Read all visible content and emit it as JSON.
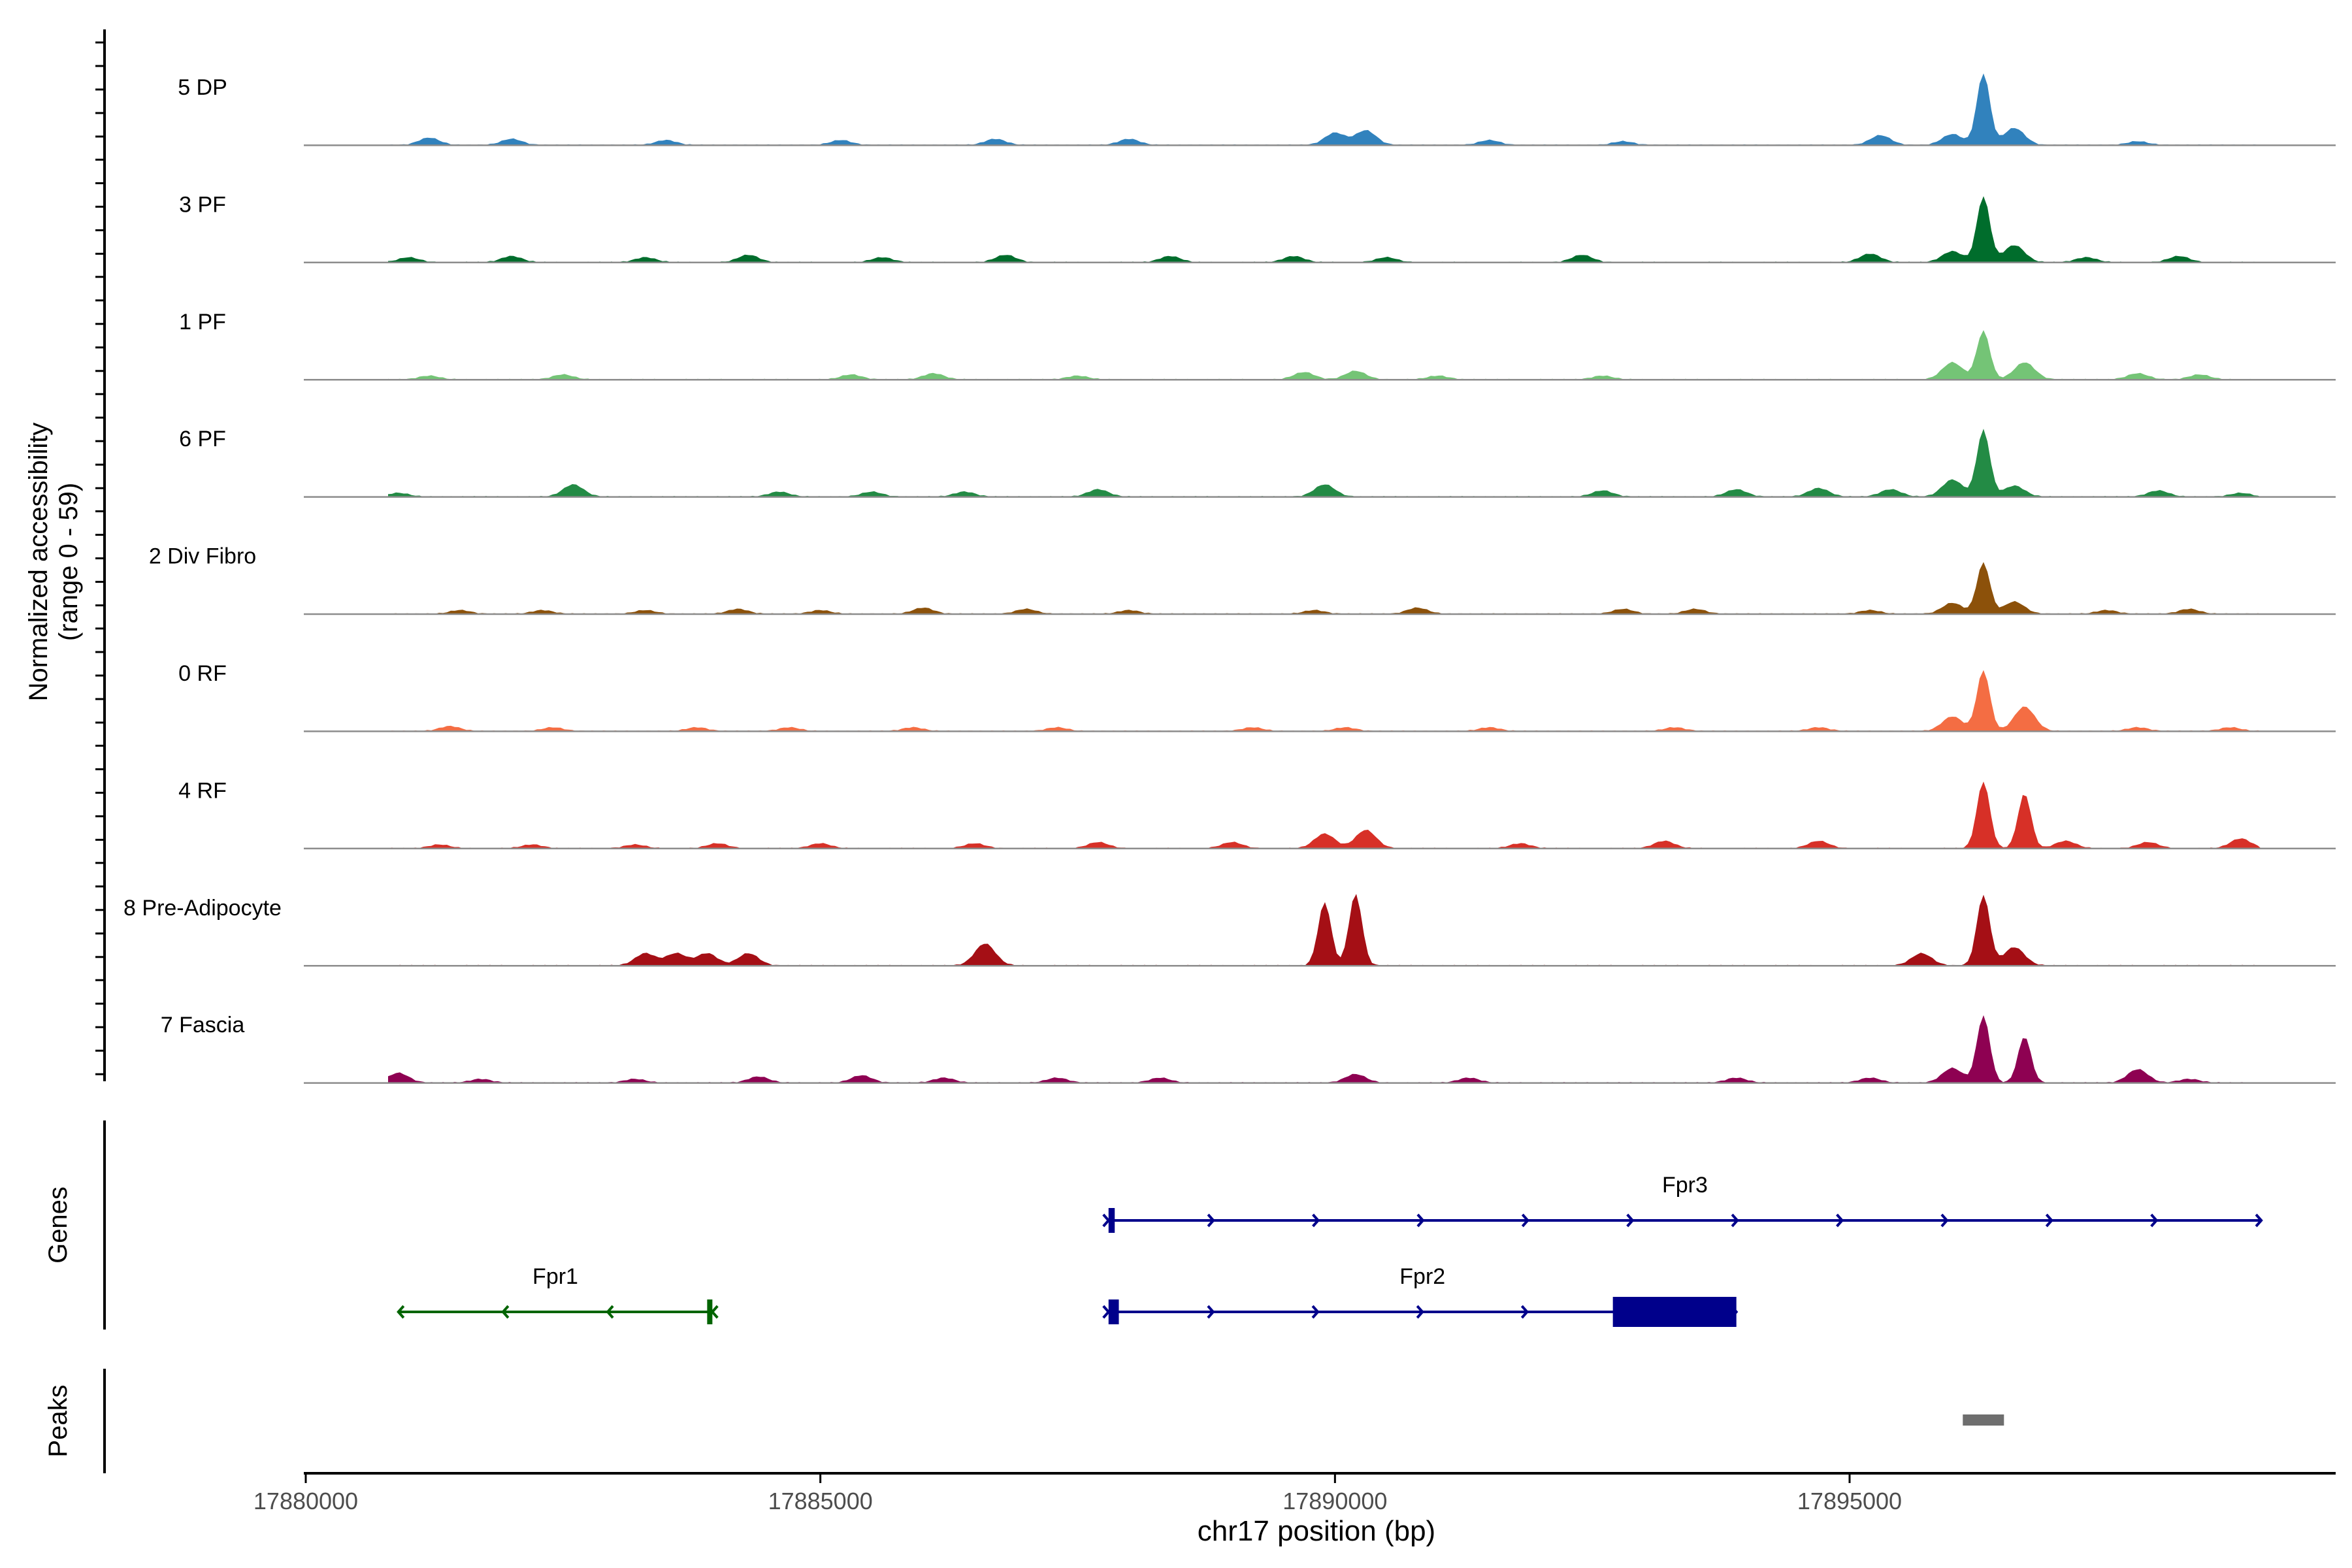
{
  "chart_data": {
    "type": "area",
    "title": "",
    "xlabel": "chr17 position (bp)",
    "ylabel_line1": "Normalized accessibility",
    "ylabel_line2": "(range 0 - 59)",
    "xlim": [
      17880000,
      17900000
    ],
    "ylim": [
      0,
      59
    ],
    "x_ticks": [
      17880000,
      17885000,
      17890000,
      17895000
    ],
    "x_tick_labels": [
      "17880000",
      "17885000",
      "17890000",
      "17895000"
    ],
    "tracks": [
      {
        "name": "5 DP",
        "color": "#3182BD",
        "peaks": [
          [
            17881200,
            6
          ],
          [
            17882000,
            5
          ],
          [
            17883500,
            4
          ],
          [
            17885200,
            4
          ],
          [
            17886700,
            5
          ],
          [
            17888000,
            5
          ],
          [
            17890000,
            10
          ],
          [
            17890300,
            12
          ],
          [
            17891500,
            4
          ],
          [
            17892800,
            3
          ],
          [
            17895300,
            8
          ],
          [
            17896000,
            9
          ],
          [
            17896300,
            59
          ],
          [
            17896600,
            14
          ],
          [
            17897800,
            3
          ]
        ]
      },
      {
        "name": "3 PF",
        "color": "#006D2C",
        "peaks": [
          [
            17881000,
            4
          ],
          [
            17882000,
            5
          ],
          [
            17883300,
            4
          ],
          [
            17884300,
            6
          ],
          [
            17885600,
            4
          ],
          [
            17886800,
            6
          ],
          [
            17888400,
            5
          ],
          [
            17889600,
            5
          ],
          [
            17890500,
            4
          ],
          [
            17892400,
            6
          ],
          [
            17895200,
            7
          ],
          [
            17896000,
            9
          ],
          [
            17896300,
            54
          ],
          [
            17896600,
            14
          ],
          [
            17897300,
            4
          ],
          [
            17898200,
            5
          ]
        ]
      },
      {
        "name": "1 PF",
        "color": "#74C476",
        "peaks": [
          [
            17881200,
            3
          ],
          [
            17882500,
            4
          ],
          [
            17885300,
            4
          ],
          [
            17886100,
            5
          ],
          [
            17887500,
            3
          ],
          [
            17889700,
            6
          ],
          [
            17890200,
            7
          ],
          [
            17891000,
            3
          ],
          [
            17892600,
            3
          ],
          [
            17896000,
            14
          ],
          [
            17896300,
            40
          ],
          [
            17896700,
            14
          ],
          [
            17897800,
            5
          ],
          [
            17898400,
            4
          ]
        ]
      },
      {
        "name": "6 PF",
        "color": "#238B45",
        "peaks": [
          [
            17880900,
            3
          ],
          [
            17882600,
            10
          ],
          [
            17884600,
            4
          ],
          [
            17885500,
            4
          ],
          [
            17886400,
            4
          ],
          [
            17887700,
            6
          ],
          [
            17889900,
            10
          ],
          [
            17892600,
            5
          ],
          [
            17893900,
            6
          ],
          [
            17894700,
            7
          ],
          [
            17895400,
            6
          ],
          [
            17896000,
            14
          ],
          [
            17896300,
            55
          ],
          [
            17896600,
            9
          ],
          [
            17898000,
            5
          ],
          [
            17898800,
            3
          ]
        ]
      },
      {
        "name": "2 Div Fibro",
        "color": "#8C510A",
        "peaks": [
          [
            17881500,
            3
          ],
          [
            17882300,
            3
          ],
          [
            17883300,
            3
          ],
          [
            17884200,
            4
          ],
          [
            17885000,
            3
          ],
          [
            17886000,
            5
          ],
          [
            17887000,
            4
          ],
          [
            17888000,
            3
          ],
          [
            17889800,
            3
          ],
          [
            17890800,
            5
          ],
          [
            17892800,
            4
          ],
          [
            17893500,
            4
          ],
          [
            17895200,
            3
          ],
          [
            17896000,
            9
          ],
          [
            17896300,
            42
          ],
          [
            17896600,
            10
          ],
          [
            17897500,
            3
          ],
          [
            17898300,
            4
          ]
        ]
      },
      {
        "name": "0 RF",
        "color": "#F46D43",
        "peaks": [
          [
            17881400,
            4
          ],
          [
            17882400,
            3
          ],
          [
            17883800,
            3
          ],
          [
            17884700,
            3
          ],
          [
            17885900,
            3
          ],
          [
            17887300,
            3
          ],
          [
            17889200,
            3
          ],
          [
            17890100,
            3
          ],
          [
            17891500,
            3
          ],
          [
            17893300,
            3
          ],
          [
            17894700,
            3
          ],
          [
            17896000,
            12
          ],
          [
            17896300,
            50
          ],
          [
            17896700,
            20
          ],
          [
            17897800,
            3
          ],
          [
            17898700,
            3
          ]
        ]
      },
      {
        "name": "4 RF",
        "color": "#D73027",
        "peaks": [
          [
            17881300,
            3
          ],
          [
            17882200,
            3
          ],
          [
            17883200,
            3
          ],
          [
            17884000,
            4
          ],
          [
            17885000,
            4
          ],
          [
            17886500,
            4
          ],
          [
            17887700,
            5
          ],
          [
            17889000,
            5
          ],
          [
            17889900,
            12
          ],
          [
            17890300,
            15
          ],
          [
            17891800,
            4
          ],
          [
            17893200,
            6
          ],
          [
            17894700,
            6
          ],
          [
            17896300,
            55
          ],
          [
            17896700,
            45
          ],
          [
            17897100,
            6
          ],
          [
            17897900,
            5
          ],
          [
            17898800,
            8
          ]
        ]
      },
      {
        "name": "8 Pre-Adipocyte",
        "color": "#A50F15",
        "peaks": [
          [
            17883300,
            10
          ],
          [
            17883600,
            10
          ],
          [
            17883900,
            10
          ],
          [
            17884300,
            10
          ],
          [
            17886600,
            18
          ],
          [
            17889900,
            52
          ],
          [
            17890200,
            59
          ],
          [
            17895700,
            10
          ],
          [
            17896300,
            58
          ],
          [
            17896600,
            15
          ]
        ]
      },
      {
        "name": "7 Fascia",
        "color": "#8E0152",
        "peaks": [
          [
            17880900,
            8
          ],
          [
            17881700,
            3
          ],
          [
            17883200,
            3
          ],
          [
            17884400,
            5
          ],
          [
            17885400,
            6
          ],
          [
            17886200,
            4
          ],
          [
            17887300,
            4
          ],
          [
            17888300,
            4
          ],
          [
            17890200,
            7
          ],
          [
            17891300,
            4
          ],
          [
            17893900,
            4
          ],
          [
            17895200,
            4
          ],
          [
            17896000,
            12
          ],
          [
            17896300,
            55
          ],
          [
            17896700,
            38
          ],
          [
            17897800,
            11
          ],
          [
            17898300,
            3
          ]
        ]
      }
    ],
    "genes": [
      {
        "name": "Fpr3",
        "strand": "+",
        "color": "#00008B",
        "start": 17887800,
        "end": 17899000,
        "row": 1,
        "exons": [
          [
            17887800,
            17887860
          ]
        ]
      },
      {
        "name": "Fpr2",
        "strand": "+",
        "color": "#00008B",
        "start": 17887800,
        "end": 17893900,
        "row": 2,
        "exons": [
          [
            17887800,
            17887900
          ],
          [
            17892700,
            17893900
          ]
        ]
      },
      {
        "name": "Fpr1",
        "strand": "-",
        "color": "#006400",
        "start": 17880900,
        "end": 17883950,
        "row": 2,
        "exons": [
          [
            17883900,
            17883950
          ]
        ]
      }
    ],
    "peak_regions": [
      [
        17896100,
        17896500
      ]
    ],
    "panel_labels": {
      "genes": "Genes",
      "peaks": "Peaks"
    }
  }
}
